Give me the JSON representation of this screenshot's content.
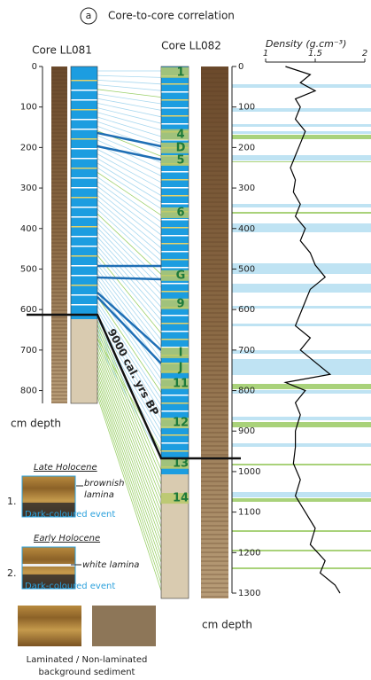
{
  "panel_label": "a",
  "title": "Core-to-core correlation",
  "cores": [
    {
      "name": "Core LL081",
      "depth_ticks": [
        0,
        100,
        200,
        300,
        400,
        500,
        600,
        700,
        800
      ],
      "axis_label": "cm depth"
    },
    {
      "name": "Core LL082",
      "events": [
        {
          "label": "1",
          "depth": 15
        },
        {
          "label": "4",
          "depth": 168
        },
        {
          "label": "D",
          "depth": 201
        },
        {
          "label": "5",
          "depth": 232
        },
        {
          "label": "6",
          "depth": 361
        },
        {
          "label": "G",
          "depth": 516
        },
        {
          "label": "9",
          "depth": 586
        },
        {
          "label": "I",
          "depth": 707
        },
        {
          "label": "J",
          "depth": 744
        },
        {
          "label": "11",
          "depth": 783
        },
        {
          "label": "12",
          "depth": 880
        },
        {
          "label": "13",
          "depth": 980
        },
        {
          "label": "14",
          "depth": 1066
        }
      ]
    }
  ],
  "age_marker": "9000 cal. yrs BP",
  "chart_data": {
    "type": "line",
    "title": "Density (g.cm⁻³)",
    "xlabel": "cm depth",
    "color": "#000000",
    "x": [
      0,
      20,
      40,
      60,
      80,
      100,
      130,
      160,
      190,
      220,
      250,
      280,
      310,
      340,
      370,
      400,
      430,
      460,
      490,
      520,
      550,
      580,
      610,
      640,
      670,
      700,
      730,
      760,
      780,
      800,
      830,
      860,
      900,
      940,
      980,
      1020,
      1060,
      1100,
      1140,
      1180,
      1220,
      1250,
      1280,
      1300
    ],
    "values": [
      1.2,
      1.45,
      1.35,
      1.5,
      1.3,
      1.35,
      1.3,
      1.4,
      1.35,
      1.3,
      1.25,
      1.3,
      1.28,
      1.35,
      1.3,
      1.4,
      1.35,
      1.45,
      1.5,
      1.6,
      1.45,
      1.4,
      1.35,
      1.3,
      1.45,
      1.35,
      1.5,
      1.65,
      1.2,
      1.4,
      1.3,
      1.35,
      1.3,
      1.3,
      1.28,
      1.35,
      1.3,
      1.4,
      1.5,
      1.45,
      1.6,
      1.55,
      1.7,
      1.75
    ],
    "xlim": [
      0,
      1300
    ],
    "xticks": [
      0,
      100,
      200,
      300,
      400,
      500,
      600,
      700,
      800,
      900,
      1000,
      1100,
      1200,
      1300
    ],
    "ylim": [
      1,
      2
    ],
    "yticks": [
      1,
      1.5,
      2
    ]
  },
  "legend": {
    "late": {
      "title": "Late Holocene",
      "number": "1.",
      "lamina": [
        "brownish",
        "lamina"
      ],
      "event": "Dark-coloured event"
    },
    "early": {
      "title": "Early Holocene",
      "number": "2.",
      "lamina": "white lamina",
      "event": "Dark-coloured event"
    },
    "background": [
      "Laminated / Non-laminated",
      "background sediment"
    ]
  }
}
